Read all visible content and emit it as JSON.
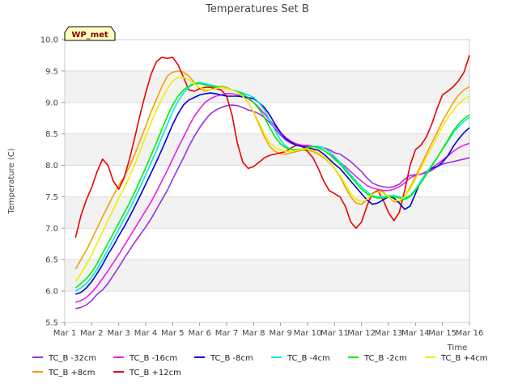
{
  "chart_data": {
    "type": "line",
    "title": "Temperatures Set B",
    "xlabel": "Time",
    "ylabel": "Temperature (C)",
    "x_ticks": [
      "Mar 1",
      "Mar 2",
      "Mar 3",
      "Mar 4",
      "Mar 5",
      "Mar 6",
      "Mar 7",
      "Mar 8",
      "Mar 9",
      "Mar 10",
      "Mar 11",
      "Mar 12",
      "Mar 13",
      "Mar 14",
      "Mar 15",
      "Mar 16"
    ],
    "y_ticks": [
      "5.5",
      "6.0",
      "6.5",
      "7.0",
      "7.5",
      "8.0",
      "8.5",
      "9.0",
      "9.5",
      "10.0"
    ],
    "xlim": [
      0,
      15
    ],
    "ylim": [
      5.5,
      10.0
    ],
    "x_unit": "days since Mar 1",
    "grid": "horizontal alternating bands",
    "band_colors": [
      "#f2f2f2",
      "#ffffff"
    ],
    "station_label": "WP_met",
    "legend_position": "bottom",
    "x": [
      0.4,
      0.6,
      0.8,
      1.0,
      1.2,
      1.4,
      1.6,
      1.8,
      2.0,
      2.2,
      2.4,
      2.6,
      2.8,
      3.0,
      3.2,
      3.4,
      3.6,
      3.8,
      4.0,
      4.2,
      4.4,
      4.6,
      4.8,
      5.0,
      5.2,
      5.4,
      5.6,
      5.8,
      6.0,
      6.2,
      6.4,
      6.6,
      6.8,
      7.0,
      7.2,
      7.4,
      7.6,
      7.8,
      8.0,
      8.2,
      8.4,
      8.6,
      8.8,
      9.0,
      9.2,
      9.4,
      9.6,
      9.8,
      10.0,
      10.2,
      10.4,
      10.6,
      10.8,
      11.0,
      11.2,
      11.4,
      11.6,
      11.8,
      12.0,
      12.2,
      12.4,
      12.6,
      12.8,
      13.0,
      13.2,
      13.4,
      13.6,
      13.8,
      14.0,
      14.2,
      14.4,
      14.6,
      14.8,
      15.0
    ],
    "series": [
      {
        "name": "TC_B -32cm",
        "color": "#9b30e0",
        "values": [
          5.72,
          5.74,
          5.78,
          5.85,
          5.95,
          6.02,
          6.12,
          6.25,
          6.38,
          6.52,
          6.65,
          6.78,
          6.9,
          7.02,
          7.15,
          7.3,
          7.45,
          7.6,
          7.78,
          7.95,
          8.12,
          8.3,
          8.46,
          8.6,
          8.72,
          8.82,
          8.88,
          8.92,
          8.95,
          8.96,
          8.95,
          8.92,
          8.88,
          8.86,
          8.82,
          8.76,
          8.68,
          8.58,
          8.48,
          8.4,
          8.35,
          8.32,
          8.3,
          8.3,
          8.3,
          8.3,
          8.28,
          8.25,
          8.2,
          8.18,
          8.12,
          8.06,
          7.98,
          7.9,
          7.8,
          7.72,
          7.68,
          7.66,
          7.65,
          7.66,
          7.7,
          7.78,
          7.84,
          7.85,
          7.86,
          7.88,
          7.92,
          7.98,
          8.02,
          8.04,
          8.06,
          8.08,
          8.1,
          8.12
        ]
      },
      {
        "name": "TC_B +8cm",
        "color": "#f4a000",
        "values": [
          6.35,
          6.5,
          6.65,
          6.82,
          7.0,
          7.18,
          7.35,
          7.52,
          7.68,
          7.82,
          7.98,
          8.18,
          8.4,
          8.62,
          8.85,
          9.05,
          9.25,
          9.42,
          9.48,
          9.5,
          9.48,
          9.42,
          9.32,
          9.22,
          9.18,
          9.2,
          9.24,
          9.26,
          9.24,
          9.2,
          9.16,
          9.1,
          9.0,
          8.85,
          8.65,
          8.45,
          8.3,
          8.22,
          8.18,
          8.18,
          8.2,
          8.22,
          8.24,
          8.24,
          8.22,
          8.18,
          8.12,
          8.05,
          7.95,
          7.82,
          7.65,
          7.5,
          7.4,
          7.38,
          7.45,
          7.55,
          7.6,
          7.58,
          7.5,
          7.42,
          7.42,
          7.5,
          7.65,
          7.82,
          8.0,
          8.18,
          8.35,
          8.52,
          8.7,
          8.85,
          9.0,
          9.12,
          9.2,
          9.25
        ]
      },
      {
        "name": "TC_B -16cm",
        "color": "#ee1de6",
        "values": [
          5.82,
          5.85,
          5.9,
          5.98,
          6.08,
          6.2,
          6.32,
          6.45,
          6.58,
          6.72,
          6.86,
          7.0,
          7.14,
          7.28,
          7.42,
          7.58,
          7.75,
          7.92,
          8.1,
          8.28,
          8.45,
          8.62,
          8.78,
          8.9,
          9.0,
          9.06,
          9.1,
          9.12,
          9.14,
          9.14,
          9.12,
          9.1,
          9.06,
          9.0,
          8.92,
          8.82,
          8.72,
          8.62,
          8.52,
          8.44,
          8.38,
          8.34,
          8.32,
          8.32,
          8.3,
          8.28,
          8.24,
          8.18,
          8.12,
          8.05,
          7.98,
          7.9,
          7.82,
          7.75,
          7.68,
          7.64,
          7.62,
          7.6,
          7.6,
          7.62,
          7.66,
          7.72,
          7.8,
          7.84,
          7.86,
          7.9,
          7.95,
          8.02,
          8.08,
          8.15,
          8.22,
          8.28,
          8.32,
          8.35
        ]
      },
      {
        "name": "TC_B +12cm",
        "color": "#ee0000",
        "values": [
          6.85,
          7.2,
          7.45,
          7.65,
          7.9,
          8.1,
          8.0,
          7.75,
          7.62,
          7.8,
          8.1,
          8.45,
          8.82,
          9.15,
          9.45,
          9.65,
          9.72,
          9.7,
          9.72,
          9.6,
          9.4,
          9.2,
          9.18,
          9.22,
          9.24,
          9.24,
          9.22,
          9.2,
          9.1,
          8.8,
          8.35,
          8.05,
          7.95,
          7.98,
          8.05,
          8.12,
          8.16,
          8.18,
          8.2,
          8.22,
          8.28,
          8.32,
          8.3,
          8.22,
          8.12,
          7.95,
          7.75,
          7.6,
          7.55,
          7.5,
          7.35,
          7.1,
          7.0,
          7.1,
          7.35,
          7.55,
          7.6,
          7.45,
          7.25,
          7.12,
          7.25,
          7.6,
          8.0,
          8.25,
          8.32,
          8.45,
          8.65,
          8.9,
          9.12,
          9.18,
          9.25,
          9.35,
          9.48,
          9.75
        ]
      },
      {
        "name": "TC_B -8cm",
        "color": "#0000dd",
        "values": [
          5.95,
          5.98,
          6.05,
          6.15,
          6.28,
          6.42,
          6.58,
          6.72,
          6.88,
          7.02,
          7.18,
          7.35,
          7.52,
          7.7,
          7.88,
          8.06,
          8.25,
          8.45,
          8.65,
          8.82,
          8.96,
          9.04,
          9.08,
          9.12,
          9.14,
          9.15,
          9.14,
          9.12,
          9.1,
          9.1,
          9.1,
          9.09,
          9.08,
          9.06,
          9.0,
          8.92,
          8.8,
          8.65,
          8.52,
          8.42,
          8.36,
          8.32,
          8.3,
          8.28,
          8.26,
          8.24,
          8.18,
          8.1,
          8.02,
          7.95,
          7.85,
          7.75,
          7.65,
          7.55,
          7.45,
          7.38,
          7.4,
          7.45,
          7.5,
          7.48,
          7.4,
          7.3,
          7.35,
          7.55,
          7.75,
          7.88,
          7.95,
          7.98,
          8.05,
          8.15,
          8.3,
          8.42,
          8.52,
          8.6
        ]
      },
      {
        "name": "TC_B -4cm",
        "color": "#00e8e8",
        "values": [
          6.0,
          6.05,
          6.12,
          6.22,
          6.35,
          6.5,
          6.66,
          6.82,
          6.98,
          7.14,
          7.3,
          7.48,
          7.66,
          7.85,
          8.04,
          8.24,
          8.45,
          8.65,
          8.85,
          9.02,
          9.15,
          9.24,
          9.3,
          9.32,
          9.3,
          9.28,
          9.26,
          9.24,
          9.22,
          9.2,
          9.18,
          9.15,
          9.12,
          9.08,
          9.0,
          8.88,
          8.72,
          8.55,
          8.4,
          8.3,
          8.25,
          8.24,
          8.25,
          8.28,
          8.3,
          8.3,
          8.28,
          8.22,
          8.14,
          8.05,
          7.95,
          7.85,
          7.75,
          7.66,
          7.58,
          7.52,
          7.5,
          7.5,
          7.52,
          7.52,
          7.5,
          7.48,
          7.52,
          7.62,
          7.75,
          7.88,
          8.0,
          8.12,
          8.25,
          8.38,
          8.52,
          8.62,
          8.7,
          8.76
        ]
      },
      {
        "name": "TC_B -2cm",
        "color": "#00ee00",
        "values": [
          6.05,
          6.12,
          6.2,
          6.3,
          6.44,
          6.6,
          6.76,
          6.92,
          7.08,
          7.24,
          7.4,
          7.58,
          7.77,
          7.96,
          8.16,
          8.36,
          8.57,
          8.78,
          8.96,
          9.1,
          9.2,
          9.26,
          9.3,
          9.3,
          9.28,
          9.26,
          9.25,
          9.24,
          9.22,
          9.2,
          9.17,
          9.13,
          9.08,
          9.0,
          8.9,
          8.76,
          8.6,
          8.45,
          8.34,
          8.28,
          8.25,
          8.25,
          8.26,
          8.28,
          8.3,
          8.28,
          8.24,
          8.18,
          8.1,
          8.02,
          7.92,
          7.82,
          7.72,
          7.62,
          7.55,
          7.5,
          7.48,
          7.48,
          7.5,
          7.5,
          7.48,
          7.46,
          7.5,
          7.6,
          7.72,
          7.85,
          7.98,
          8.12,
          8.26,
          8.4,
          8.55,
          8.66,
          8.74,
          8.8
        ]
      },
      {
        "name": "TC_B +4cm",
        "color": "#f2ee00",
        "values": [
          6.15,
          6.28,
          6.42,
          6.58,
          6.76,
          6.94,
          7.12,
          7.3,
          7.48,
          7.64,
          7.82,
          8.02,
          8.24,
          8.46,
          8.68,
          8.88,
          9.06,
          9.22,
          9.34,
          9.4,
          9.4,
          9.36,
          9.3,
          9.24,
          9.2,
          9.2,
          9.22,
          9.24,
          9.22,
          9.2,
          9.16,
          9.1,
          9.0,
          8.86,
          8.68,
          8.5,
          8.36,
          8.28,
          8.24,
          8.22,
          8.22,
          8.24,
          8.26,
          8.26,
          8.24,
          8.2,
          8.14,
          8.06,
          7.96,
          7.84,
          7.7,
          7.56,
          7.46,
          7.42,
          7.46,
          7.54,
          7.58,
          7.56,
          7.5,
          7.44,
          7.44,
          7.5,
          7.62,
          7.78,
          7.95,
          8.12,
          8.28,
          8.45,
          8.62,
          8.76,
          8.88,
          8.98,
          9.05,
          9.1
        ]
      }
    ]
  }
}
